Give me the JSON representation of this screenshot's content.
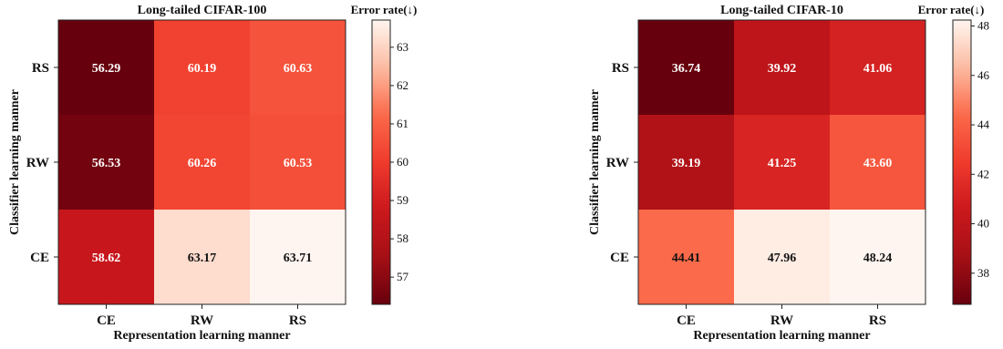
{
  "chart_data": [
    {
      "type": "heatmap",
      "title": "Long-tailed CIFAR-100",
      "xlabel": "Representation learning manner",
      "ylabel": "Classifier learning manner",
      "x_categories": [
        "CE",
        "RW",
        "RS"
      ],
      "y_categories": [
        "RS",
        "RW",
        "CE"
      ],
      "values": [
        [
          56.29,
          60.19,
          60.63
        ],
        [
          56.53,
          60.26,
          60.53
        ],
        [
          58.62,
          63.17,
          63.71
        ]
      ],
      "value_labels": [
        [
          "56.29",
          "60.19",
          "60.63"
        ],
        [
          "56.53",
          "60.26",
          "60.53"
        ],
        [
          "58.62",
          "63.17",
          "63.71"
        ]
      ],
      "colorbar": {
        "title": "Error rate(↓)",
        "range": [
          56.29,
          63.71
        ],
        "ticks": [
          57,
          58,
          59,
          60,
          61,
          62,
          63
        ],
        "tick_labels": [
          "57",
          "58",
          "59",
          "60",
          "61",
          "62",
          "63"
        ]
      },
      "colormap": [
        "#fff5f0",
        "#fcbba1",
        "#fb6a4a",
        "#ef3b2c",
        "#cb181d",
        "#a50f15",
        "#67000d"
      ]
    },
    {
      "type": "heatmap",
      "title": "Long-tailed CIFAR-10",
      "xlabel": "Representation learning manner",
      "ylabel": "Classifier learning manner",
      "x_categories": [
        "CE",
        "RW",
        "RS"
      ],
      "y_categories": [
        "RS",
        "RW",
        "CE"
      ],
      "values": [
        [
          36.74,
          39.92,
          41.06
        ],
        [
          39.19,
          41.25,
          43.6
        ],
        [
          44.41,
          47.96,
          48.24
        ]
      ],
      "value_labels": [
        [
          "36.74",
          "39.92",
          "41.06"
        ],
        [
          "39.19",
          "41.25",
          "43.60"
        ],
        [
          "44.41",
          "47.96",
          "48.24"
        ]
      ],
      "colorbar": {
        "title": "Error rate(↓)",
        "range": [
          36.74,
          48.24
        ],
        "ticks": [
          38,
          40,
          42,
          44,
          46,
          48
        ],
        "tick_labels": [
          "38",
          "40",
          "42",
          "44",
          "46",
          "48"
        ]
      },
      "colormap": [
        "#fff5f0",
        "#fcbba1",
        "#fb6a4a",
        "#ef3b2c",
        "#cb181d",
        "#a50f15",
        "#67000d"
      ]
    }
  ]
}
